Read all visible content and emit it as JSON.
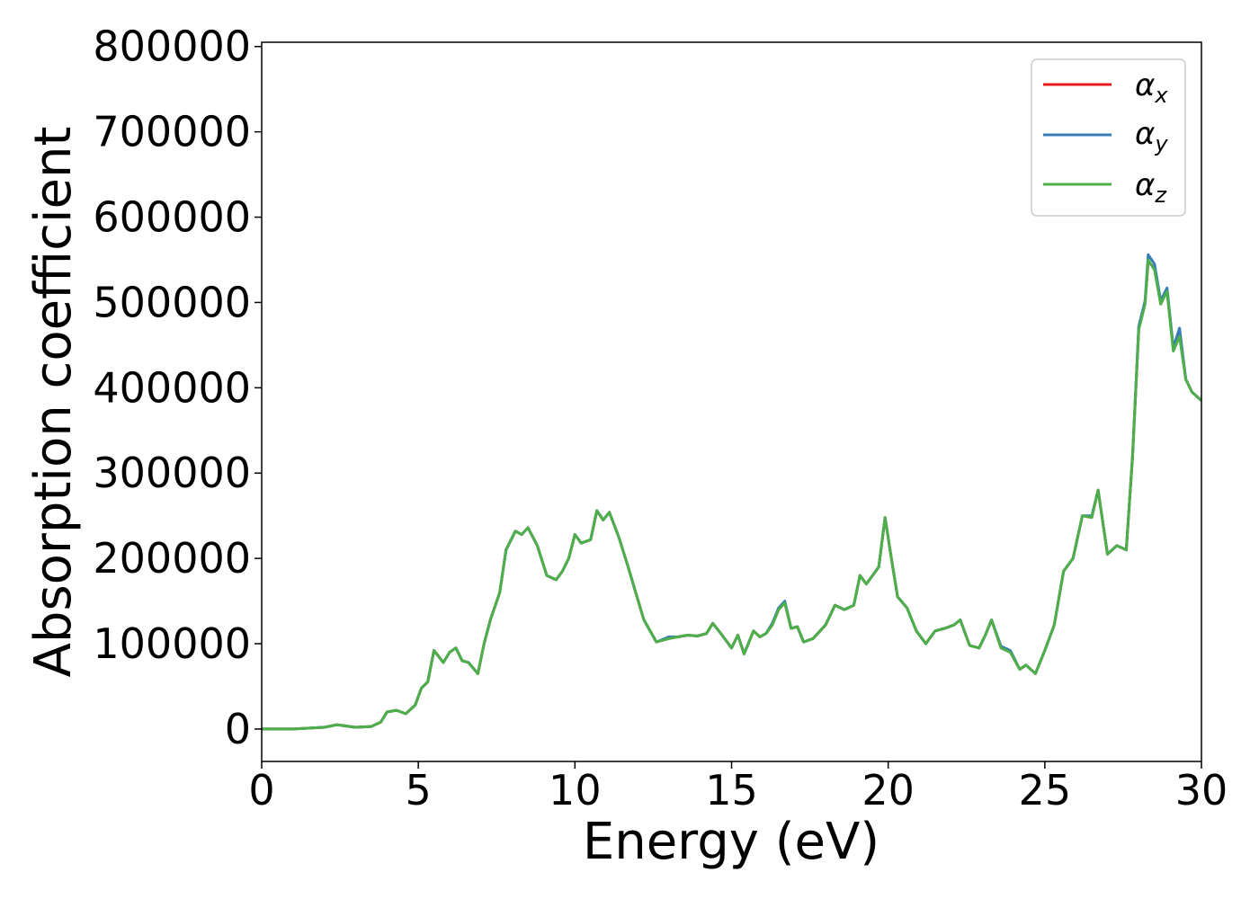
{
  "chart_data": {
    "type": "line",
    "title": "",
    "xlabel": "Energy (eV)",
    "ylabel": "Absorption coefficient",
    "xlim": [
      0,
      30
    ],
    "ylim": [
      -38000,
      805000
    ],
    "xticks": [
      "0",
      "5",
      "10",
      "15",
      "20",
      "25",
      "30"
    ],
    "yticks": [
      "0",
      "100000",
      "200000",
      "300000",
      "400000",
      "500000",
      "600000",
      "700000",
      "800000"
    ],
    "grid": false,
    "legend_position": "top-right",
    "x": [
      0,
      1,
      2,
      2.4,
      3,
      3.5,
      3.8,
      4.0,
      4.3,
      4.6,
      4.9,
      5.1,
      5.3,
      5.5,
      5.8,
      6.0,
      6.2,
      6.4,
      6.6,
      6.9,
      7.1,
      7.3,
      7.6,
      7.8,
      8.1,
      8.3,
      8.5,
      8.8,
      9.1,
      9.4,
      9.6,
      9.8,
      10.0,
      10.2,
      10.5,
      10.7,
      10.9,
      11.1,
      11.4,
      11.7,
      11.9,
      12.2,
      12.6,
      13.0,
      13.3,
      13.6,
      13.9,
      14.2,
      14.4,
      14.7,
      15.0,
      15.2,
      15.4,
      15.7,
      15.9,
      16.1,
      16.3,
      16.5,
      16.7,
      16.9,
      17.1,
      17.3,
      17.6,
      18.0,
      18.3,
      18.6,
      18.9,
      19.1,
      19.3,
      19.5,
      19.7,
      19.9,
      20.1,
      20.3,
      20.6,
      20.9,
      21.2,
      21.5,
      21.8,
      22.1,
      22.3,
      22.6,
      22.9,
      23.1,
      23.3,
      23.6,
      23.9,
      24.2,
      24.4,
      24.7,
      25.0,
      25.3,
      25.6,
      25.9,
      26.2,
      26.5,
      26.7,
      27.0,
      27.3,
      27.6,
      27.8,
      28.0,
      28.2,
      28.3,
      28.5,
      28.7,
      28.9,
      29.1,
      29.3,
      29.5,
      29.7,
      30.0
    ],
    "series": [
      {
        "name": "α_x",
        "color": "#e41a1c",
        "values": [
          0,
          0,
          2000,
          5000,
          2000,
          3000,
          8000,
          20000,
          22000,
          18000,
          28000,
          48000,
          55000,
          92000,
          78000,
          90000,
          95000,
          80000,
          78000,
          65000,
          100000,
          128000,
          160000,
          210000,
          232000,
          228000,
          236000,
          215000,
          180000,
          175000,
          185000,
          200000,
          228000,
          218000,
          222000,
          256000,
          245000,
          254000,
          225000,
          190000,
          165000,
          128000,
          102000,
          106000,
          108000,
          110000,
          109000,
          112000,
          124000,
          110000,
          95000,
          110000,
          88000,
          115000,
          108000,
          112000,
          122000,
          140000,
          148000,
          118000,
          120000,
          102000,
          106000,
          122000,
          145000,
          140000,
          145000,
          180000,
          170000,
          180000,
          190000,
          248000,
          200000,
          155000,
          142000,
          115000,
          100000,
          115000,
          118000,
          122000,
          128000,
          98000,
          95000,
          110000,
          128000,
          95000,
          90000,
          70000,
          75000,
          65000,
          92000,
          122000,
          185000,
          200000,
          250000,
          248000,
          280000,
          205000,
          215000,
          210000,
          320000,
          470000,
          500000,
          548000,
          540000,
          500000,
          515000,
          445000,
          465000,
          410000,
          395000,
          385000
        ]
      },
      {
        "name": "α_y",
        "color": "#377eb8",
        "values": [
          0,
          0,
          2000,
          5000,
          2000,
          3000,
          8000,
          20000,
          22000,
          18000,
          28000,
          48000,
          55000,
          92000,
          78000,
          90000,
          95000,
          80000,
          78000,
          65000,
          100000,
          128000,
          160000,
          210000,
          232000,
          228000,
          236000,
          215000,
          180000,
          175000,
          185000,
          200000,
          228000,
          218000,
          222000,
          256000,
          245000,
          254000,
          225000,
          190000,
          165000,
          128000,
          102000,
          108000,
          108000,
          110000,
          109000,
          112000,
          124000,
          110000,
          95000,
          110000,
          88000,
          115000,
          108000,
          112000,
          124000,
          142000,
          150000,
          118000,
          120000,
          102000,
          106000,
          122000,
          145000,
          140000,
          145000,
          180000,
          170000,
          180000,
          190000,
          248000,
          200000,
          155000,
          142000,
          115000,
          100000,
          115000,
          118000,
          122000,
          128000,
          98000,
          95000,
          110000,
          128000,
          97000,
          92000,
          70000,
          75000,
          65000,
          92000,
          122000,
          185000,
          200000,
          250000,
          250000,
          280000,
          205000,
          215000,
          210000,
          320000,
          472000,
          502000,
          556000,
          545000,
          502000,
          517000,
          447000,
          470000,
          410000,
          395000,
          385000
        ]
      },
      {
        "name": "α_z",
        "color": "#4daf4a",
        "values": [
          0,
          0,
          2000,
          5000,
          2000,
          3000,
          8000,
          20000,
          22000,
          18000,
          28000,
          48000,
          55000,
          92000,
          78000,
          90000,
          95000,
          80000,
          78000,
          65000,
          100000,
          128000,
          160000,
          210000,
          232000,
          228000,
          236000,
          215000,
          180000,
          175000,
          185000,
          200000,
          228000,
          218000,
          222000,
          256000,
          245000,
          254000,
          225000,
          190000,
          165000,
          128000,
          102000,
          106000,
          108000,
          110000,
          109000,
          112000,
          124000,
          110000,
          95000,
          110000,
          88000,
          115000,
          108000,
          112000,
          122000,
          140000,
          148000,
          118000,
          120000,
          102000,
          106000,
          122000,
          145000,
          140000,
          145000,
          180000,
          170000,
          180000,
          190000,
          248000,
          200000,
          155000,
          142000,
          115000,
          100000,
          115000,
          118000,
          122000,
          128000,
          98000,
          95000,
          110000,
          128000,
          95000,
          90000,
          70000,
          75000,
          65000,
          92000,
          122000,
          185000,
          200000,
          250000,
          248000,
          280000,
          205000,
          215000,
          210000,
          320000,
          468000,
          498000,
          550000,
          538000,
          498000,
          513000,
          443000,
          460000,
          410000,
          395000,
          385000
        ]
      }
    ]
  },
  "legend": {
    "items": [
      {
        "symbol": "α",
        "sub": "x",
        "color": "#e41a1c"
      },
      {
        "symbol": "α",
        "sub": "y",
        "color": "#377eb8"
      },
      {
        "symbol": "α",
        "sub": "z",
        "color": "#4daf4a"
      }
    ]
  }
}
